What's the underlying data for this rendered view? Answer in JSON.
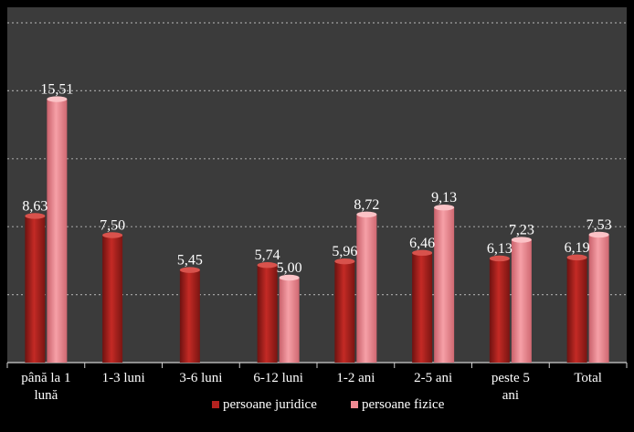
{
  "chart_data": {
    "type": "bar",
    "title": "",
    "xlabel": "",
    "ylabel": "",
    "ylim": [
      0,
      20
    ],
    "grid": true,
    "legend_position": "bottom",
    "categories": [
      [
        "până la 1",
        "lună"
      ],
      [
        "1-3 luni"
      ],
      [
        "3-6 luni"
      ],
      [
        "6-12 luni"
      ],
      [
        "1-2 ani"
      ],
      [
        "2-5 ani"
      ],
      [
        "peste 5",
        "ani"
      ],
      [
        "Total"
      ]
    ],
    "series": [
      {
        "name": "persoane juridice",
        "color": "#b3221f",
        "values": [
          8.63,
          7.5,
          5.45,
          5.74,
          5.96,
          6.46,
          6.13,
          6.19
        ],
        "labels": [
          "8,63",
          "7,50",
          "5,45",
          "5,74",
          "5,96",
          "6,46",
          "6,13",
          "6,19"
        ]
      },
      {
        "name": "persoane fizice",
        "color": "#f08a92",
        "values": [
          15.51,
          null,
          null,
          5.0,
          8.72,
          9.13,
          7.23,
          7.53
        ],
        "labels": [
          "15,51",
          null,
          null,
          "5,00",
          "8,72",
          "9,13",
          "7,23",
          "7,53"
        ]
      }
    ]
  },
  "colors": {
    "background": "#000000",
    "plot_area": "#3b3b3b",
    "gridline": "#a0a0a0",
    "text": "#ffffff"
  }
}
